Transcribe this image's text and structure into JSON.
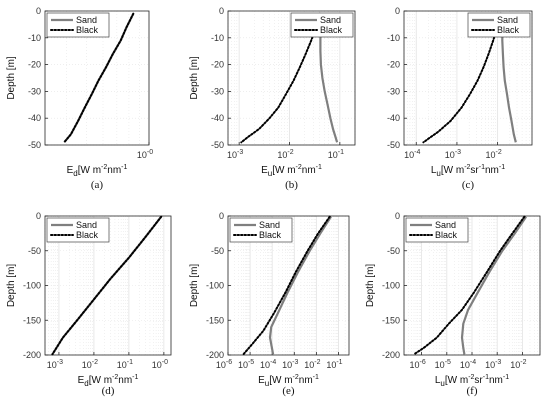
{
  "legend_entries": [
    "Sand",
    "Black"
  ],
  "colors": {
    "sand": "#7f7f7f",
    "black": "#000000",
    "grid": "#e3e3e3",
    "axis": "#262626"
  },
  "chart_data": [
    {
      "type": "line",
      "panel_label": "(a)",
      "ylabel": "Depth [m]",
      "ylim": [
        -50,
        0
      ],
      "yticks": [
        0,
        -10,
        -20,
        -30,
        -40,
        -50
      ],
      "xlabel": {
        "sym": "E",
        "sub": "d",
        "rest": "[W m",
        "e1": "-2",
        "mid": "nm",
        "e2": "-1"
      },
      "xscale": "log",
      "xlim": [
        0.315,
        1.0
      ],
      "xticks": [
        {
          "value": 1.0,
          "label": "10",
          "exp": "-0"
        }
      ],
      "legend_position": "top-left",
      "series": [
        {
          "name": "Sand",
          "style": "solid",
          "x": [
            0.84,
            0.78,
            0.73,
            0.67,
            0.62,
            0.57,
            0.53,
            0.49,
            0.455,
            0.42,
            0.39
          ],
          "y": [
            -1,
            -6,
            -11,
            -16,
            -21,
            -26,
            -31,
            -36,
            -41,
            -46,
            -49
          ]
        },
        {
          "name": "Black",
          "style": "dotted",
          "x": [
            0.84,
            0.78,
            0.73,
            0.67,
            0.62,
            0.57,
            0.53,
            0.49,
            0.455,
            0.42,
            0.39
          ],
          "y": [
            -1,
            -6,
            -11,
            -16,
            -21,
            -26,
            -31,
            -36,
            -41,
            -46,
            -49
          ]
        }
      ]
    },
    {
      "type": "line",
      "panel_label": "(b)",
      "ylabel": "Depth [m]",
      "ylim": [
        -50,
        0
      ],
      "yticks": [
        0,
        -10,
        -20,
        -30,
        -40,
        -50
      ],
      "xlabel": {
        "sym": "E",
        "sub": "u",
        "rest": "[W m",
        "e1": "-2",
        "mid": "nm",
        "e2": "-1"
      },
      "xscale": "log",
      "xlim": [
        0.0006,
        0.2
      ],
      "xticks": [
        {
          "value": 0.001,
          "label": "10",
          "exp": "-3"
        },
        {
          "value": 0.01,
          "label": "10",
          "exp": "-2"
        },
        {
          "value": 0.1,
          "label": "10",
          "exp": "-1"
        }
      ],
      "legend_position": "top-right",
      "series": [
        {
          "name": "Sand",
          "style": "solid",
          "x": [
            0.046,
            0.043,
            0.041,
            0.041,
            0.042,
            0.045,
            0.05,
            0.057,
            0.065,
            0.073,
            0.082,
            0.088
          ],
          "y": [
            -1,
            -5,
            -10,
            -15,
            -20,
            -25,
            -30,
            -35,
            -40,
            -44,
            -47,
            -49
          ]
        },
        {
          "name": "Black",
          "style": "dotted",
          "x": [
            0.04,
            0.034,
            0.027,
            0.021,
            0.016,
            0.012,
            0.0085,
            0.006,
            0.004,
            0.0025,
            0.0015,
            0.0011
          ],
          "y": [
            -1,
            -6,
            -11,
            -16,
            -21,
            -26,
            -31,
            -36,
            -40,
            -44,
            -47,
            -49
          ]
        }
      ]
    },
    {
      "type": "line",
      "panel_label": "(c)",
      "ylabel": "",
      "ylim": [
        -50,
        0
      ],
      "yticks": [
        0,
        -10,
        -20,
        -30,
        -40,
        -50
      ],
      "xlabel": {
        "sym": "L",
        "sub": "u",
        "rest": "[W m",
        "e1": "-2",
        "mid": "sr",
        "e2": "-1",
        "tail": "nm",
        "e3": "-1"
      },
      "xscale": "log",
      "xlim": [
        5e-05,
        0.07
      ],
      "xticks": [
        {
          "value": 0.0001,
          "label": "10",
          "exp": "-4"
        },
        {
          "value": 0.001,
          "label": "10",
          "exp": "-3"
        },
        {
          "value": 0.01,
          "label": "10",
          "exp": "-2"
        }
      ],
      "legend_position": "top-right",
      "series": [
        {
          "name": "Sand",
          "style": "solid",
          "x": [
            0.014,
            0.013,
            0.013,
            0.0135,
            0.014,
            0.015,
            0.017,
            0.019,
            0.022,
            0.025,
            0.028
          ],
          "y": [
            -1,
            -6,
            -11,
            -16,
            -21,
            -26,
            -31,
            -36,
            -41,
            -46,
            -49
          ]
        },
        {
          "name": "Black",
          "style": "dotted",
          "x": [
            0.012,
            0.0098,
            0.0078,
            0.006,
            0.0045,
            0.0032,
            0.0021,
            0.0013,
            0.0007,
            0.00035,
            0.00015
          ],
          "y": [
            -1,
            -6,
            -11,
            -16,
            -21,
            -26,
            -31,
            -36,
            -41,
            -45,
            -49
          ]
        }
      ]
    },
    {
      "type": "line",
      "panel_label": "(d)",
      "ylabel": "Depth [m]",
      "ylim": [
        -200,
        0
      ],
      "yticks": [
        0,
        -50,
        -100,
        -150,
        -200
      ],
      "xlabel": {
        "sym": "E",
        "sub": "d",
        "rest": "[W m",
        "e1": "-2",
        "mid": "nm",
        "e2": "-1"
      },
      "xscale": "log",
      "xlim": [
        0.0004,
        1.6
      ],
      "xticks": [
        {
          "value": 0.001,
          "label": "10",
          "exp": "-3"
        },
        {
          "value": 0.01,
          "label": "10",
          "exp": "-2"
        },
        {
          "value": 0.1,
          "label": "10",
          "exp": "-1"
        },
        {
          "value": 1,
          "label": "10",
          "exp": "-0"
        }
      ],
      "legend_position": "top-left",
      "series": [
        {
          "name": "Sand",
          "style": "solid",
          "x": [
            0.84,
            0.3,
            0.1,
            0.03,
            0.01,
            0.0033,
            0.0013,
            0.00065
          ],
          "y": [
            -1,
            -30,
            -60,
            -90,
            -120,
            -150,
            -175,
            -199
          ]
        },
        {
          "name": "Black",
          "style": "dotted",
          "x": [
            0.84,
            0.3,
            0.1,
            0.03,
            0.01,
            0.0033,
            0.0013,
            0.00065
          ],
          "y": [
            -1,
            -30,
            -60,
            -90,
            -120,
            -150,
            -175,
            -199
          ]
        }
      ]
    },
    {
      "type": "line",
      "panel_label": "(e)",
      "ylabel": "Depth [m]",
      "ylim": [
        -200,
        0
      ],
      "yticks": [
        0,
        -50,
        -100,
        -150,
        -200
      ],
      "xlabel": {
        "sym": "E",
        "sub": "u",
        "rest": "[W m",
        "e1": "-2",
        "mid": "nm",
        "e2": "-1"
      },
      "xscale": "log",
      "xlim": [
        1e-06,
        0.3
      ],
      "xticks": [
        {
          "value": 1e-06,
          "label": "10",
          "exp": "-6"
        },
        {
          "value": 1e-05,
          "label": "10",
          "exp": "-5"
        },
        {
          "value": 0.0001,
          "label": "10",
          "exp": "-4"
        },
        {
          "value": 0.001,
          "label": "10",
          "exp": "-3"
        },
        {
          "value": 0.01,
          "label": "10",
          "exp": "-2"
        },
        {
          "value": 0.1,
          "label": "10",
          "exp": "-1"
        }
      ],
      "legend_position": "top-left",
      "series": [
        {
          "name": "Sand",
          "style": "solid",
          "x": [
            0.046,
            0.015,
            0.005,
            0.0015,
            0.0005,
            0.00018,
            9e-05,
            8e-05,
            9.5e-05,
            0.00011
          ],
          "y": [
            -1,
            -25,
            -50,
            -80,
            -110,
            -140,
            -160,
            -175,
            -188,
            -199
          ]
        },
        {
          "name": "Black",
          "style": "dotted",
          "x": [
            0.04,
            0.012,
            0.004,
            0.0012,
            0.0004,
            0.00012,
            4e-05,
            1.2e-05,
            5e-06
          ],
          "y": [
            -1,
            -25,
            -50,
            -80,
            -110,
            -140,
            -165,
            -185,
            -199
          ]
        }
      ]
    },
    {
      "type": "line",
      "panel_label": "(f)",
      "ylabel": "Depth [m]",
      "ylim": [
        -200,
        0
      ],
      "yticks": [
        0,
        -50,
        -100,
        -150,
        -200
      ],
      "xlabel": {
        "sym": "L",
        "sub": "u",
        "rest": "[W m",
        "e1": "-2",
        "mid": "sr",
        "e2": "-1",
        "tail": "nm",
        "e3": "-1"
      },
      "xscale": "log",
      "xlim": [
        2e-07,
        0.05
      ],
      "xticks": [
        {
          "value": 1e-06,
          "label": "10",
          "exp": "-6"
        },
        {
          "value": 1e-05,
          "label": "10",
          "exp": "-5"
        },
        {
          "value": 0.0001,
          "label": "10",
          "exp": "-4"
        },
        {
          "value": 0.001,
          "label": "10",
          "exp": "-3"
        },
        {
          "value": 0.01,
          "label": "10",
          "exp": "-2"
        }
      ],
      "legend_position": "top-left",
      "series": [
        {
          "name": "Sand",
          "style": "solid",
          "x": [
            0.014,
            0.005,
            0.0016,
            0.0005,
            0.00017,
            7e-05,
            4.5e-05,
            4e-05,
            4.5e-05,
            5e-05
          ],
          "y": [
            -1,
            -25,
            -50,
            -80,
            -110,
            -135,
            -155,
            -175,
            -190,
            -199
          ]
        },
        {
          "name": "Black",
          "style": "dotted",
          "x": [
            0.012,
            0.004,
            0.0013,
            0.0004,
            0.00012,
            4e-05,
            1.2e-05,
            4e-06,
            1.2e-06,
            5e-07
          ],
          "y": [
            -1,
            -25,
            -50,
            -80,
            -110,
            -135,
            -155,
            -175,
            -190,
            -199
          ]
        }
      ]
    }
  ]
}
